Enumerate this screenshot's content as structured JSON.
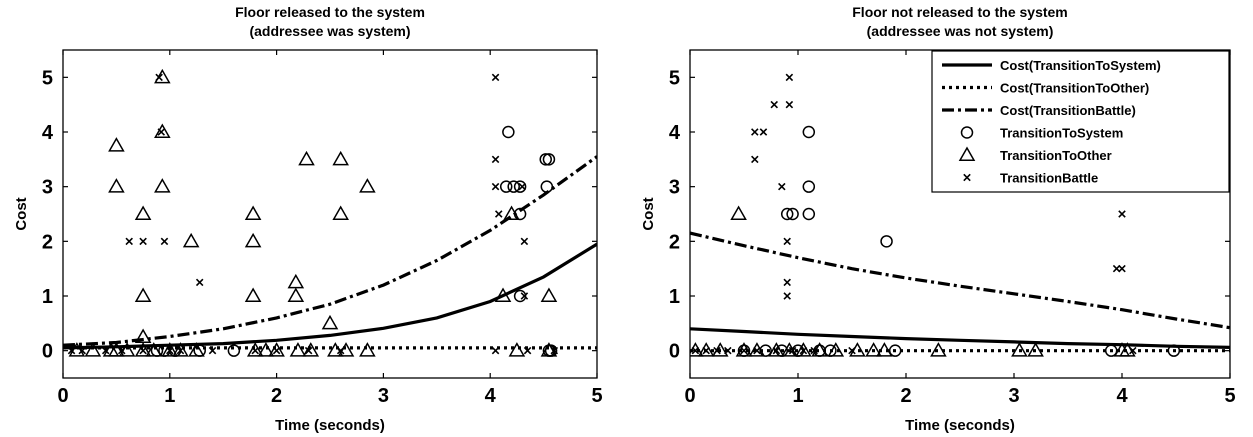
{
  "chart_data": [
    {
      "type": "scatter",
      "title": "Floor released to the system",
      "subtitle": "(addressee was system)",
      "xlabel": "Time (seconds)",
      "ylabel": "Cost",
      "xlim": [
        0,
        5
      ],
      "ylim": [
        -0.5,
        5.5
      ],
      "xticks": [
        "0",
        "1",
        "2",
        "3",
        "4",
        "5"
      ],
      "yticks": [
        "0",
        "1",
        "2",
        "3",
        "4",
        "5"
      ],
      "grid": false,
      "legend": null,
      "series": [
        {
          "marker": "circle",
          "points": [
            [
              0.88,
              0
            ],
            [
              0.95,
              0
            ],
            [
              1.05,
              0
            ],
            [
              1.28,
              0
            ],
            [
              1.6,
              0
            ],
            [
              4.17,
              4
            ],
            [
              4.15,
              3
            ],
            [
              4.22,
              3
            ],
            [
              4.28,
              3
            ],
            [
              4.28,
              2.5
            ],
            [
              4.28,
              1
            ],
            [
              4.52,
              3.5
            ],
            [
              4.55,
              3.5
            ],
            [
              4.53,
              3
            ],
            [
              4.55,
              0
            ],
            [
              4.57,
              0
            ]
          ]
        },
        {
          "marker": "triangle",
          "points": [
            [
              0.13,
              0
            ],
            [
              0.28,
              0
            ],
            [
              0.45,
              0
            ],
            [
              0.5,
              3.75
            ],
            [
              0.5,
              3
            ],
            [
              0.5,
              0
            ],
            [
              0.6,
              0
            ],
            [
              0.75,
              2.5
            ],
            [
              0.75,
              1
            ],
            [
              0.75,
              0.25
            ],
            [
              0.75,
              0
            ],
            [
              0.85,
              0
            ],
            [
              0.93,
              5
            ],
            [
              0.93,
              4
            ],
            [
              0.93,
              3
            ],
            [
              1.0,
              0
            ],
            [
              1.1,
              0
            ],
            [
              1.2,
              2
            ],
            [
              1.25,
              0
            ],
            [
              1.78,
              2.5
            ],
            [
              1.78,
              2
            ],
            [
              1.78,
              1
            ],
            [
              1.8,
              0
            ],
            [
              1.9,
              0
            ],
            [
              2.0,
              0
            ],
            [
              2.18,
              1.25
            ],
            [
              2.18,
              1
            ],
            [
              2.2,
              0
            ],
            [
              2.28,
              3.5
            ],
            [
              2.32,
              0
            ],
            [
              2.5,
              0.5
            ],
            [
              2.55,
              0
            ],
            [
              2.6,
              3.5
            ],
            [
              2.6,
              2.5
            ],
            [
              2.65,
              0
            ],
            [
              2.85,
              3
            ],
            [
              2.85,
              0
            ],
            [
              4.12,
              1
            ],
            [
              4.2,
              2.5
            ],
            [
              4.25,
              0
            ],
            [
              4.55,
              1
            ],
            [
              4.55,
              0
            ]
          ]
        },
        {
          "marker": "x",
          "points": [
            [
              0.08,
              0
            ],
            [
              0.18,
              0
            ],
            [
              0.4,
              0
            ],
            [
              0.55,
              0
            ],
            [
              0.62,
              2
            ],
            [
              0.75,
              2
            ],
            [
              0.75,
              0
            ],
            [
              0.9,
              5
            ],
            [
              0.92,
              4
            ],
            [
              0.95,
              2
            ],
            [
              1.0,
              0
            ],
            [
              1.1,
              0
            ],
            [
              1.28,
              1.25
            ],
            [
              1.4,
              0
            ],
            [
              1.8,
              0
            ],
            [
              2.0,
              0
            ],
            [
              2.3,
              0
            ],
            [
              2.6,
              0
            ],
            [
              4.05,
              5
            ],
            [
              4.05,
              3.5
            ],
            [
              4.05,
              3
            ],
            [
              4.08,
              2.5
            ],
            [
              4.05,
              0
            ],
            [
              4.3,
              3
            ],
            [
              4.32,
              2
            ],
            [
              4.32,
              1
            ],
            [
              4.35,
              0
            ],
            [
              4.6,
              0
            ]
          ]
        }
      ],
      "curves": [
        {
          "style": "solid",
          "x": [
            0,
            0.5,
            1,
            1.5,
            2,
            2.5,
            3,
            3.5,
            4,
            4.5,
            5
          ],
          "y": [
            0.05,
            0.07,
            0.1,
            0.13,
            0.19,
            0.28,
            0.41,
            0.6,
            0.9,
            1.35,
            1.95
          ]
        },
        {
          "style": "dotted",
          "x": [
            0,
            0.5,
            1,
            1.5,
            2,
            2.5,
            3,
            3.5,
            4,
            4.5,
            5
          ],
          "y": [
            0.05,
            0.05,
            0.05,
            0.05,
            0.05,
            0.05,
            0.05,
            0.05,
            0.05,
            0.05,
            0.05
          ]
        },
        {
          "style": "dashdot",
          "x": [
            0,
            0.5,
            1,
            1.5,
            2,
            2.5,
            3,
            3.5,
            4,
            4.5,
            5
          ],
          "y": [
            0.1,
            0.15,
            0.26,
            0.4,
            0.6,
            0.85,
            1.2,
            1.65,
            2.2,
            2.85,
            3.55
          ]
        }
      ]
    },
    {
      "type": "scatter",
      "title": "Floor not released to the system",
      "subtitle": "(addressee was not system)",
      "xlabel": "Time (seconds)",
      "ylabel": "Cost",
      "xlim": [
        0,
        5
      ],
      "ylim": [
        -0.5,
        5.5
      ],
      "xticks": [
        "0",
        "1",
        "2",
        "3",
        "4",
        "5"
      ],
      "yticks": [
        "0",
        "1",
        "2",
        "3",
        "4",
        "5"
      ],
      "grid": false,
      "legend": {
        "placement": "top-right",
        "entries": [
          {
            "label": "Cost(TransitionToSystem)",
            "style": "solid"
          },
          {
            "label": "Cost(TransitionToOther)",
            "style": "dotted"
          },
          {
            "label": "Cost(TransitionBattle)",
            "style": "dashdot"
          },
          {
            "label": "TransitionToSystem",
            "marker": "circle"
          },
          {
            "label": "TransitionToOther",
            "marker": "triangle"
          },
          {
            "label": "TransitionBattle",
            "marker": "x"
          }
        ]
      },
      "series": [
        {
          "marker": "circle",
          "points": [
            [
              0.5,
              0
            ],
            [
              0.7,
              0
            ],
            [
              0.85,
              0
            ],
            [
              0.9,
              2.5
            ],
            [
              0.95,
              2.5
            ],
            [
              1.0,
              0
            ],
            [
              1.1,
              4
            ],
            [
              1.1,
              3
            ],
            [
              1.1,
              2.5
            ],
            [
              1.2,
              0
            ],
            [
              1.3,
              0
            ],
            [
              1.82,
              2
            ],
            [
              1.9,
              0
            ],
            [
              3.9,
              0
            ],
            [
              4.48,
              0
            ]
          ]
        },
        {
          "marker": "triangle",
          "points": [
            [
              0.05,
              0
            ],
            [
              0.15,
              0
            ],
            [
              0.28,
              0
            ],
            [
              0.45,
              2.5
            ],
            [
              0.5,
              0
            ],
            [
              0.62,
              0
            ],
            [
              0.8,
              0
            ],
            [
              0.92,
              0
            ],
            [
              1.05,
              0
            ],
            [
              1.2,
              0
            ],
            [
              1.35,
              0
            ],
            [
              1.55,
              0
            ],
            [
              1.7,
              0
            ],
            [
              1.8,
              0
            ],
            [
              2.3,
              0
            ],
            [
              3.05,
              0
            ],
            [
              3.2,
              0
            ],
            [
              4.0,
              0
            ],
            [
              4.05,
              0
            ]
          ]
        },
        {
          "marker": "x",
          "points": [
            [
              0.05,
              0
            ],
            [
              0.15,
              0
            ],
            [
              0.25,
              0
            ],
            [
              0.35,
              0
            ],
            [
              0.5,
              0
            ],
            [
              0.6,
              4
            ],
            [
              0.6,
              3.5
            ],
            [
              0.62,
              0
            ],
            [
              0.68,
              4
            ],
            [
              0.78,
              4.5
            ],
            [
              0.8,
              0
            ],
            [
              0.85,
              3
            ],
            [
              0.9,
              2
            ],
            [
              0.9,
              1.25
            ],
            [
              0.9,
              1
            ],
            [
              0.92,
              4.5
            ],
            [
              0.92,
              5
            ],
            [
              0.95,
              0
            ],
            [
              1.05,
              0
            ],
            [
              1.15,
              0
            ],
            [
              1.5,
              0
            ],
            [
              3.95,
              1.5
            ],
            [
              4.0,
              2.5
            ],
            [
              4.0,
              1.5
            ],
            [
              4.1,
              0
            ]
          ]
        }
      ],
      "curves": [
        {
          "style": "solid",
          "x": [
            0,
            0.5,
            1,
            1.5,
            2,
            2.5,
            3,
            3.5,
            4,
            4.5,
            5
          ],
          "y": [
            0.4,
            0.35,
            0.3,
            0.26,
            0.22,
            0.19,
            0.16,
            0.13,
            0.11,
            0.08,
            0.06
          ]
        },
        {
          "style": "dotted",
          "x": [
            0,
            0.5,
            1,
            1.5,
            2,
            2.5,
            3,
            3.5,
            4,
            4.5,
            5
          ],
          "y": [
            0.0,
            0.0,
            0.0,
            0.0,
            0.0,
            0.0,
            0.0,
            0.0,
            0.0,
            0.0,
            0.0
          ]
        },
        {
          "style": "dashdot",
          "x": [
            0,
            0.5,
            1,
            1.5,
            2,
            2.5,
            3,
            3.5,
            4,
            4.5,
            5
          ],
          "y": [
            2.15,
            1.92,
            1.7,
            1.5,
            1.33,
            1.18,
            1.04,
            0.9,
            0.75,
            0.58,
            0.42
          ]
        }
      ]
    }
  ]
}
